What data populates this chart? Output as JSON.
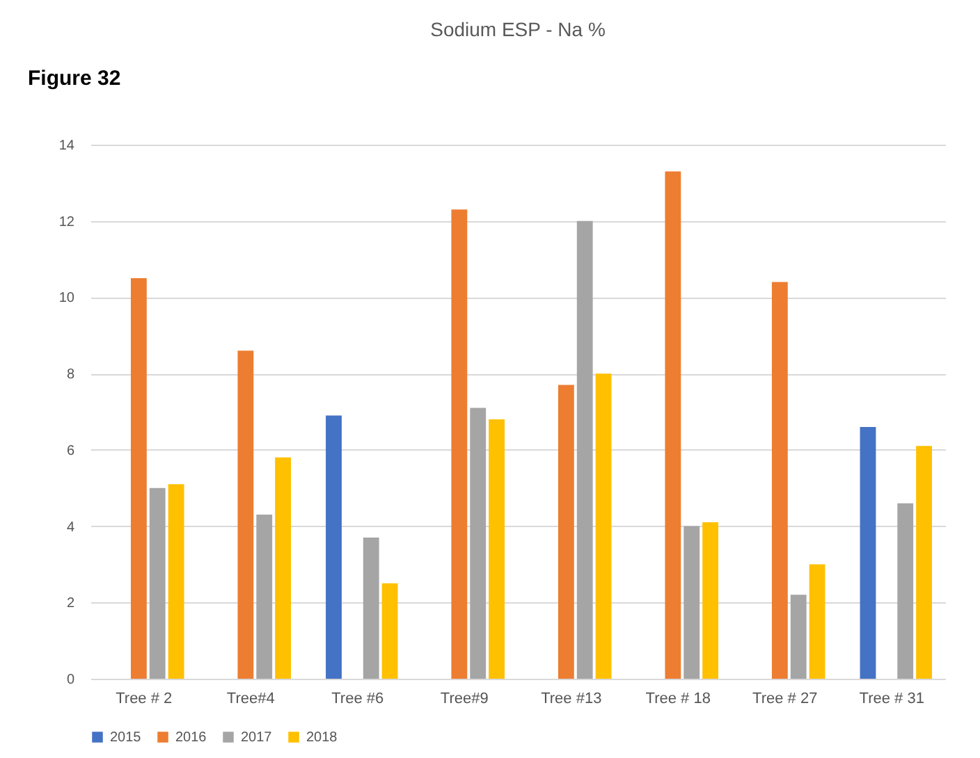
{
  "chart_data": {
    "type": "bar",
    "title": "Sodium ESP  - Na %",
    "annotations": [
      "Figure 32"
    ],
    "categories": [
      "Tree # 2",
      "Tree#4",
      "Tree #6",
      "Tree#9",
      "Tree #13",
      "Tree # 18",
      "Tree # 27",
      "Tree # 31"
    ],
    "series": [
      {
        "name": "2015",
        "color": "#4472c4",
        "values": [
          null,
          null,
          6.9,
          null,
          null,
          null,
          null,
          6.6
        ]
      },
      {
        "name": "2016",
        "color": "#ed7d31",
        "values": [
          10.5,
          8.6,
          null,
          12.3,
          7.7,
          13.3,
          10.4,
          null
        ]
      },
      {
        "name": "2017",
        "color": "#a5a5a5",
        "values": [
          5.0,
          4.3,
          3.7,
          7.1,
          12.0,
          4.0,
          2.2,
          4.6
        ]
      },
      {
        "name": "2018",
        "color": "#ffc000",
        "values": [
          5.1,
          5.8,
          2.5,
          6.8,
          8.0,
          4.1,
          3.0,
          6.1
        ]
      }
    ],
    "ylim": [
      0,
      14
    ],
    "yticks": [
      0,
      2,
      4,
      6,
      8,
      10,
      12,
      14
    ],
    "grid": "y",
    "legend": "bottom"
  }
}
